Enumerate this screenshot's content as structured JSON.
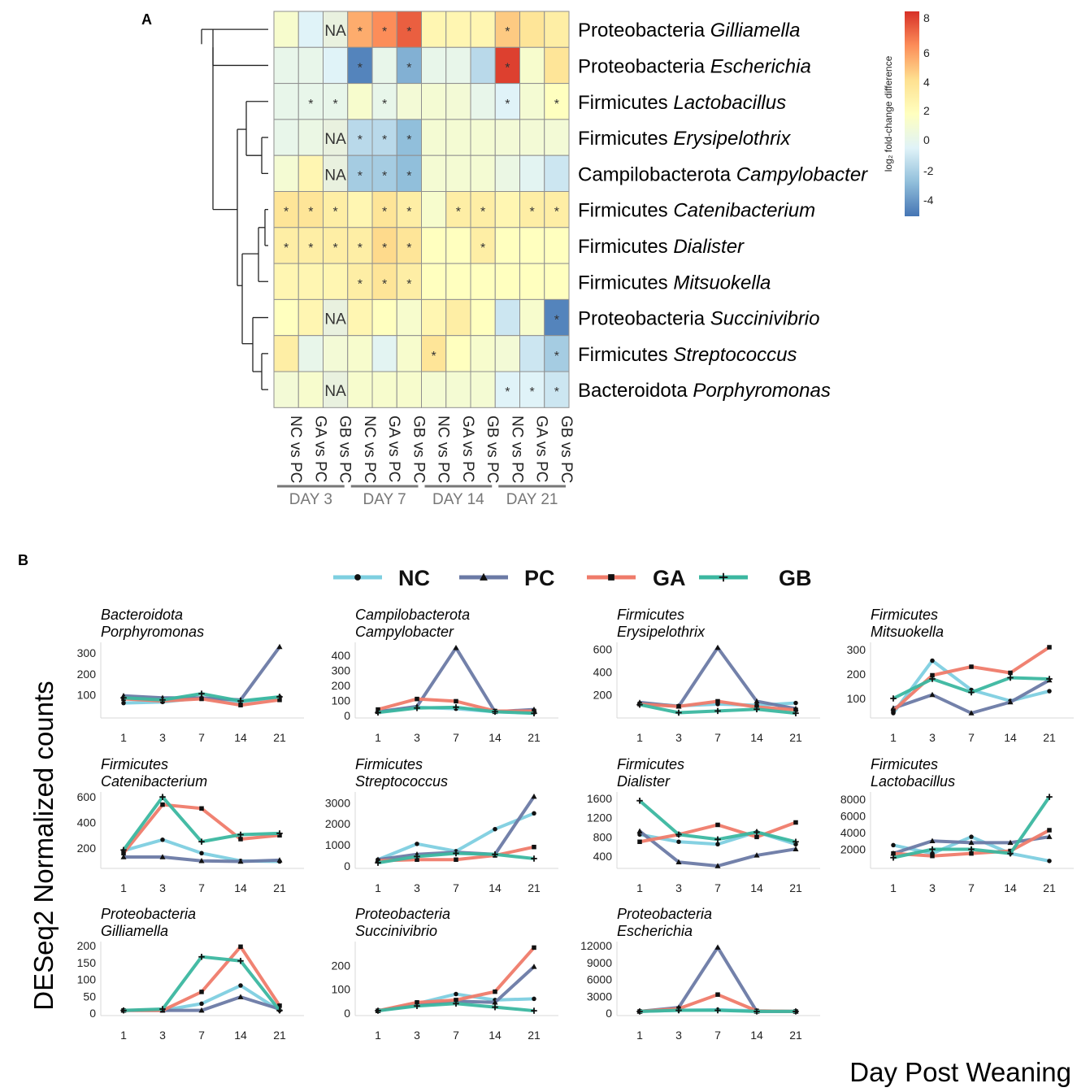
{
  "panel_a_letter": "A",
  "panel_b_letter": "B",
  "colorbar": {
    "title": "log₂ fold-change difference",
    "ticks": [
      "8",
      "6",
      "4",
      "2",
      "0",
      "-2",
      "-4"
    ],
    "colors": [
      "#4575b4",
      "#91bfdb",
      "#e0f3f8",
      "#ffffbf",
      "#fee090",
      "#fc8d59",
      "#d73027"
    ]
  },
  "series_colors": {
    "NC": "#7ecfe0",
    "PC": "#6b7aa5",
    "GA": "#ef7b6a",
    "GB": "#3bb7a0"
  },
  "legend": [
    {
      "key": "NC",
      "label": "NC",
      "marker": "circle"
    },
    {
      "key": "PC",
      "label": "PC",
      "marker": "triangle"
    },
    {
      "key": "GA",
      "label": "GA",
      "marker": "square"
    },
    {
      "key": "GB",
      "label": "GB",
      "marker": "plus"
    }
  ],
  "y_axis_label": "DESeq2 Normalized counts",
  "x_axis_label": "Day Post Weaning",
  "chart_data": [
    {
      "type": "heatmap",
      "title": "log2 fold-change difference",
      "days": [
        "DAY 3",
        "DAY 7",
        "DAY 14",
        "DAY 21"
      ],
      "columns": [
        "NC vs PC",
        "GA vs PC",
        "GB vs PC",
        "NC vs PC",
        "GA vs PC",
        "GB vs PC",
        "NC vs PC",
        "GA vs PC",
        "GB vs PC",
        "NC vs PC",
        "GA vs PC",
        "GB vs PC"
      ],
      "rows": [
        {
          "phylum": "Proteobacteria",
          "genus": "Gilliamella",
          "values": [
            0.5,
            -1,
            null,
            4.5,
            5.5,
            7,
            1.5,
            1.5,
            1.5,
            3.5,
            2.5,
            2
          ],
          "sig": [
            0,
            0,
            0,
            1,
            1,
            1,
            0,
            0,
            0,
            1,
            0,
            0
          ]
        },
        {
          "phylum": "Proteobacteria",
          "genus": "Escherichia",
          "values": [
            -0.5,
            -0.5,
            -1,
            -5,
            -0.5,
            -3.5,
            -0.5,
            -0.5,
            -2,
            8,
            0.5,
            2.5
          ],
          "sig": [
            0,
            0,
            0,
            1,
            0,
            1,
            0,
            0,
            0,
            1,
            0,
            0
          ]
        },
        {
          "phylum": "Firmicutes",
          "genus": "Lactobacillus",
          "values": [
            -0.5,
            -0.5,
            -0.5,
            0.5,
            -0.5,
            0.2,
            0.3,
            0.2,
            -0.5,
            -1,
            0.3,
            1
          ],
          "sig": [
            0,
            1,
            1,
            0,
            1,
            0,
            0,
            0,
            0,
            1,
            0,
            1
          ]
        },
        {
          "phylum": "Firmicutes",
          "genus": "Erysipelothrix",
          "values": [
            -0.5,
            -0.3,
            null,
            -2,
            -2,
            -3,
            0.3,
            0.3,
            0.3,
            0.2,
            0.2,
            0.2
          ],
          "sig": [
            0,
            0,
            0,
            1,
            1,
            1,
            0,
            0,
            0,
            0,
            0,
            0
          ]
        },
        {
          "phylum": "Campilobacterota",
          "genus": "Campylobacter",
          "values": [
            0.3,
            1.5,
            null,
            -2.5,
            -2.5,
            -3,
            0.3,
            0.3,
            0.3,
            -0.3,
            -0.8,
            -1.5
          ],
          "sig": [
            0,
            0,
            0,
            1,
            1,
            1,
            0,
            0,
            0,
            0,
            0,
            0
          ]
        },
        {
          "phylum": "Firmicutes",
          "genus": "Catenibacterium",
          "values": [
            2.5,
            2.5,
            2,
            1.5,
            2.5,
            2,
            0.5,
            2,
            2,
            1.5,
            2,
            2
          ],
          "sig": [
            1,
            1,
            1,
            0,
            1,
            1,
            0,
            1,
            1,
            0,
            1,
            1
          ]
        },
        {
          "phylum": "Firmicutes",
          "genus": "Dialister",
          "values": [
            2,
            2,
            2,
            2,
            3,
            2.5,
            1,
            1,
            2,
            1,
            1,
            1
          ],
          "sig": [
            1,
            1,
            1,
            1,
            1,
            1,
            0,
            0,
            1,
            0,
            0,
            0
          ]
        },
        {
          "phylum": "Firmicutes",
          "genus": "Mitsuokella",
          "values": [
            1.5,
            1.5,
            1.5,
            2,
            2.5,
            2,
            1,
            1,
            1,
            1,
            1,
            1
          ],
          "sig": [
            0,
            0,
            0,
            1,
            1,
            1,
            0,
            0,
            0,
            0,
            0,
            0
          ]
        },
        {
          "phylum": "Proteobacteria",
          "genus": "Succinivibrio",
          "values": [
            1,
            1.5,
            null,
            1.5,
            1,
            0.5,
            1.5,
            2,
            1,
            -1.5,
            0.5,
            -5
          ],
          "sig": [
            0,
            0,
            0,
            0,
            0,
            0,
            0,
            0,
            0,
            0,
            0,
            1
          ]
        },
        {
          "phylum": "Firmicutes",
          "genus": "Streptococcus",
          "values": [
            2,
            -0.5,
            0.2,
            0.5,
            -0.8,
            0.5,
            2.5,
            1,
            0.5,
            0.2,
            -1.5,
            -2.5
          ],
          "sig": [
            0,
            0,
            0,
            0,
            0,
            0,
            1,
            0,
            0,
            0,
            0,
            1
          ]
        },
        {
          "phylum": "Bacteroidota",
          "genus": "Porphyromonas",
          "values": [
            0.2,
            0.5,
            null,
            0.5,
            0.5,
            0.5,
            0.3,
            0.3,
            0.3,
            -1,
            -1,
            -1.5
          ],
          "sig": [
            0,
            0,
            0,
            0,
            0,
            0,
            0,
            0,
            0,
            1,
            1,
            1
          ]
        }
      ],
      "na_label": "NA",
      "sig_label": "*",
      "value_range": [
        -5.5,
        8.5
      ]
    },
    {
      "type": "line",
      "x": [
        1,
        3,
        7,
        14,
        21
      ],
      "xticks": [
        "1",
        "3",
        "7",
        "14",
        "21"
      ],
      "panels": [
        {
          "phylum": "Bacteroidota",
          "genus": "Porphyromonas",
          "ylim": [
            0,
            340
          ],
          "yticks": [
            100,
            200,
            300
          ],
          "series": {
            "NC": [
              60,
              65,
              85,
              65,
              90
            ],
            "PC": [
              95,
              85,
              85,
              75,
              330
            ],
            "GA": [
              80,
              70,
              80,
              50,
              75
            ],
            "GB": [
              85,
              75,
              105,
              70,
              90
            ]
          }
        },
        {
          "phylum": "Campilobacterota",
          "genus": "Campylobacter",
          "ylim": [
            0,
            470
          ],
          "yticks": [
            0,
            100,
            200,
            300,
            400
          ],
          "series": {
            "NC": [
              25,
              55,
              45,
              25,
              20
            ],
            "PC": [
              25,
              60,
              450,
              25,
              40
            ],
            "GA": [
              40,
              110,
              95,
              30,
              30
            ],
            "GB": [
              20,
              50,
              55,
              25,
              15
            ]
          }
        },
        {
          "phylum": "Firmicutes",
          "genus": "Erysipelothrix",
          "ylim": [
            20,
            640
          ],
          "yticks": [
            200,
            400,
            600
          ],
          "series": {
            "NC": [
              125,
              105,
              120,
              110,
              130
            ],
            "PC": [
              135,
              100,
              615,
              145,
              80
            ],
            "GA": [
              120,
              100,
              145,
              95,
              70
            ],
            "GB": [
              115,
              45,
              60,
              75,
              40
            ]
          }
        },
        {
          "phylum": "Firmicutes",
          "genus": "Mitsuokella",
          "ylim": [
            30,
            320
          ],
          "yticks": [
            100,
            200,
            300
          ],
          "series": {
            "NC": [
              40,
              255,
              135,
              90,
              130
            ],
            "PC": [
              60,
              115,
              40,
              85,
              175
            ],
            "GA": [
              50,
              195,
              230,
              205,
              310
            ],
            "GB": [
              100,
              180,
              125,
              185,
              180
            ]
          }
        },
        {
          "phylum": "Firmicutes",
          "genus": "Catenibacterium",
          "ylim": [
            60,
            620
          ],
          "yticks": [
            200,
            400,
            600
          ],
          "series": {
            "NC": [
              180,
              265,
              160,
              100,
              95
            ],
            "PC": [
              130,
              130,
              100,
              95,
              105
            ],
            "GA": [
              160,
              540,
              510,
              270,
              300
            ],
            "GB": [
              185,
              600,
              250,
              305,
              315
            ]
          }
        },
        {
          "phylum": "Firmicutes",
          "genus": "Streptococcus",
          "ylim": [
            0,
            3400
          ],
          "yticks": [
            0,
            1000,
            2000,
            3000
          ],
          "series": {
            "NC": [
              300,
              1050,
              700,
              1750,
              2500
            ],
            "PC": [
              300,
              550,
              650,
              550,
              3300
            ],
            "GA": [
              250,
              300,
              300,
              500,
              900
            ],
            "GB": [
              150,
              450,
              600,
              550,
              350
            ]
          }
        },
        {
          "phylum": "Firmicutes",
          "genus": "Dialister",
          "ylim": [
            200,
            1680
          ],
          "yticks": [
            400,
            800,
            1200,
            1600
          ],
          "series": {
            "NC": [
              850,
              700,
              650,
              900,
              650
            ],
            "PC": [
              920,
              280,
              200,
              420,
              550
            ],
            "GA": [
              700,
              850,
              1050,
              800,
              1100
            ],
            "GB": [
              1550,
              850,
              750,
              900,
              700
            ]
          }
        },
        {
          "phylum": "Firmicutes",
          "genus": "Lactobacillus",
          "ylim": [
            0,
            8600
          ],
          "yticks": [
            2000,
            4000,
            6000,
            8000
          ],
          "series": {
            "NC": [
              2500,
              1500,
              3500,
              1500,
              600
            ],
            "PC": [
              1500,
              3000,
              2800,
              2800,
              3500
            ],
            "GA": [
              1500,
              1200,
              1500,
              1800,
              4300
            ],
            "GB": [
              1000,
              2000,
              2000,
              1500,
              8300
            ]
          }
        },
        {
          "phylum": "Proteobacteria",
          "genus": "Gilliamella",
          "ylim": [
            0,
            205
          ],
          "yticks": [
            0,
            50,
            100,
            150,
            200
          ],
          "series": {
            "NC": [
              8,
              8,
              28,
              82,
              8
            ],
            "PC": [
              8,
              8,
              8,
              48,
              12
            ],
            "GA": [
              8,
              8,
              63,
              197,
              22
            ],
            "GB": [
              8,
              12,
              167,
              155,
              8
            ]
          }
        },
        {
          "phylum": "Proteobacteria",
          "genus": "Succinivibrio",
          "ylim": [
            0,
            290
          ],
          "yticks": [
            0,
            100,
            200
          ],
          "series": {
            "NC": [
              10,
              40,
              80,
              55,
              60
            ],
            "PC": [
              10,
              35,
              50,
              45,
              195
            ],
            "GA": [
              10,
              45,
              55,
              90,
              275
            ],
            "GB": [
              10,
              30,
              40,
              25,
              10
            ]
          }
        },
        {
          "phylum": "Proteobacteria",
          "genus": "Escherichia",
          "ylim": [
            0,
            12300
          ],
          "yticks": [
            0,
            3000,
            6000,
            9000,
            12000
          ],
          "series": {
            "NC": [
              300,
              500,
              600,
              400,
              300
            ],
            "PC": [
              300,
              1000,
              11700,
              300,
              300
            ],
            "GA": [
              300,
              800,
              3300,
              400,
              300
            ],
            "GB": [
              300,
              500,
              500,
              300,
              300
            ]
          }
        }
      ]
    }
  ]
}
